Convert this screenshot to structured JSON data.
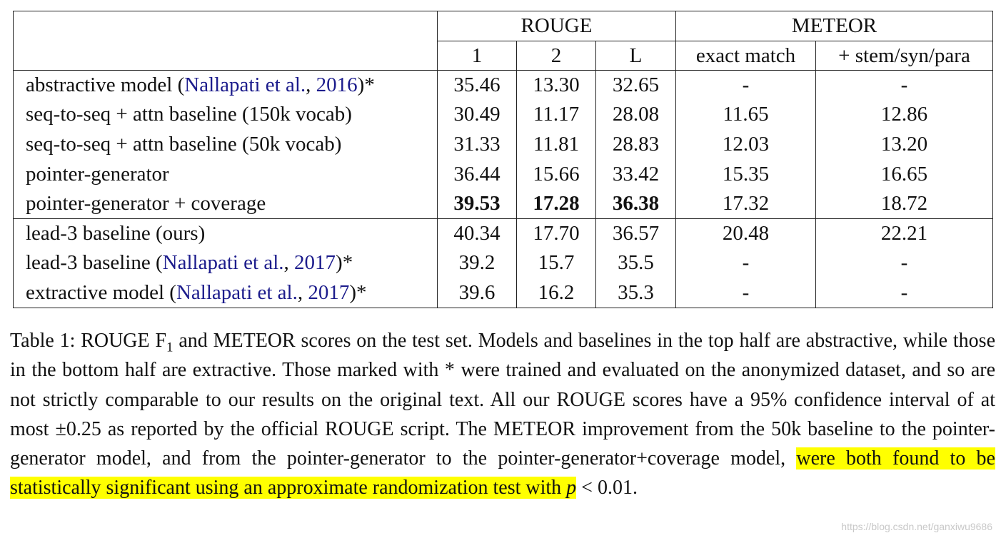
{
  "table": {
    "groups": [
      {
        "label": "ROUGE",
        "columns": [
          "1",
          "2",
          "L"
        ]
      },
      {
        "label": "METEOR",
        "columns": [
          "exact match",
          "+ stem/syn/para"
        ]
      }
    ],
    "sections": [
      [
        {
          "label": [
            "abstractive model (",
            "Nallapati et al.",
            ", ",
            "2016",
            ")*"
          ],
          "values": [
            "35.46",
            "13.30",
            "32.65",
            "-",
            "-"
          ]
        },
        {
          "label": [
            "seq-to-seq + attn baseline (150k vocab)"
          ],
          "values": [
            "30.49",
            "11.17",
            "28.08",
            "11.65",
            "12.86"
          ]
        },
        {
          "label": [
            "seq-to-seq + attn baseline (50k vocab)"
          ],
          "values": [
            "31.33",
            "11.81",
            "28.83",
            "12.03",
            "13.20"
          ]
        },
        {
          "label": [
            "pointer-generator"
          ],
          "values": [
            "36.44",
            "15.66",
            "33.42",
            "15.35",
            "16.65"
          ]
        },
        {
          "label": [
            "pointer-generator + coverage"
          ],
          "values": [
            {
              "text": "39.53",
              "bold": true
            },
            {
              "text": "17.28",
              "bold": true
            },
            {
              "text": "36.38",
              "bold": true
            },
            "17.32",
            "18.72"
          ]
        }
      ],
      [
        {
          "label": [
            "lead-3 baseline (ours)"
          ],
          "values": [
            "40.34",
            "17.70",
            "36.57",
            "20.48",
            "22.21"
          ]
        },
        {
          "label": [
            "lead-3 baseline (",
            "Nallapati et al.",
            ", ",
            "2017",
            ")*"
          ],
          "values": [
            "39.2",
            "15.7",
            "35.5",
            "-",
            "-"
          ]
        },
        {
          "label": [
            "extractive model (",
            "Nallapati et al.",
            ", ",
            "2017",
            ")*"
          ],
          "values": [
            "39.6",
            "16.2",
            "35.3",
            "-",
            "-"
          ]
        }
      ]
    ]
  },
  "caption": [
    {
      "text": "Table 1: ROUGE F"
    },
    {
      "text": "1",
      "sub": true
    },
    {
      "text": " and METEOR scores on the test set.  Models and baselines in the top half are abstractive, while those in the bottom half are extractive. Those marked with * were trained and evaluated on the anonymized dataset, and so are not strictly comparable to our results on the original text. All our ROUGE scores have a 95% confidence interval of at most ±0.25 as reported by the official ROUGE script. The METEOR improvement from the 50k baseline to the pointer-generator model, and from the pointer-generator to the pointer-generator+coverage model, "
    },
    {
      "text": "were both found to be statistically significant using an approximate randomization test with ",
      "highlight": true
    },
    {
      "text": "p",
      "italic": true,
      "highlight": true
    },
    {
      "text": " < 0.01."
    }
  ],
  "watermark": "https://blog.csdn.net/ganxiwu9686"
}
